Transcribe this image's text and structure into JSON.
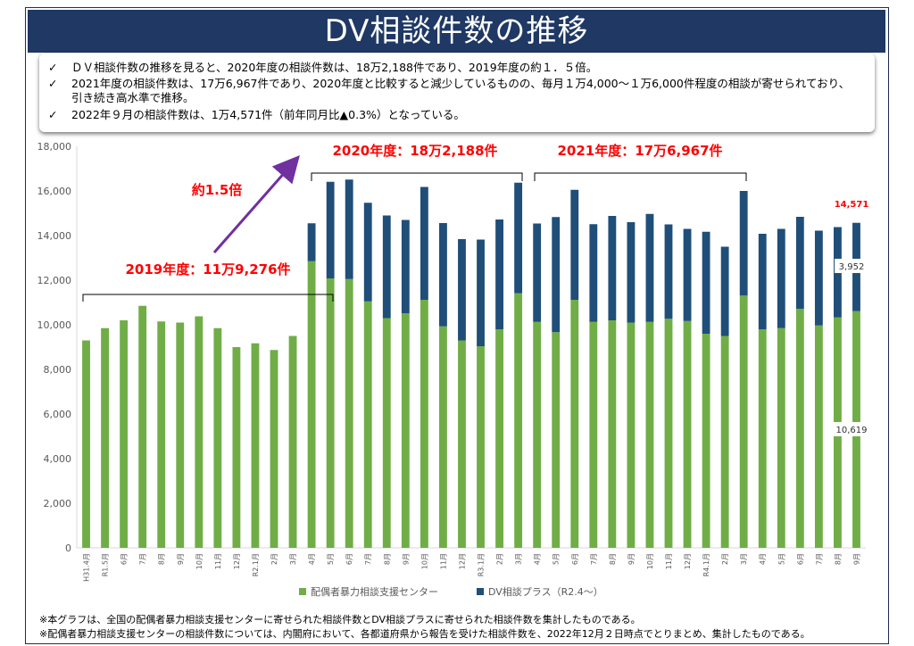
{
  "header": {
    "title": "DV相談件数の推移"
  },
  "summary": {
    "check_mark": "✓",
    "bullets": [
      "ＤＶ相談件数の推移を見ると、2020年度の相談件数は、18万2,188件であり、2019年度の約１．５倍。",
      "2021年度の相談件数は、17万6,967件であり、2020年度と比較すると減少しているものの、毎月１万4,000～１万6,000件程度の相談が寄せられており、引き続き高水準で推移。",
      "2022年９月の相談件数は、1万4,571件（前年同月比▲0.3%）となっている。"
    ]
  },
  "chart_data": {
    "type": "bar",
    "stacked": true,
    "categories": [
      "H31.4月",
      "R1.5月",
      "6月",
      "7月",
      "8月",
      "9月",
      "10月",
      "11月",
      "12月",
      "R2.1月",
      "2月",
      "3月",
      "4月",
      "5月",
      "6月",
      "7月",
      "8月",
      "9月",
      "10月",
      "11月",
      "12月",
      "R3.1月",
      "2月",
      "3月",
      "4月",
      "5月",
      "6月",
      "7月",
      "8月",
      "9月",
      "10月",
      "11月",
      "12月",
      "R4.1月",
      "2月",
      "3月",
      "4月",
      "5月",
      "6月",
      "7月",
      "8月",
      "9月"
    ],
    "series": [
      {
        "name": "配偶者暴力相談支援センター",
        "color": "#70ad47",
        "values": [
          9300,
          9850,
          10200,
          10850,
          10150,
          10100,
          10380,
          9850,
          9000,
          9170,
          8870,
          9500,
          12850,
          12080,
          12050,
          11050,
          10300,
          10520,
          11120,
          9930,
          9300,
          9040,
          9800,
          11420,
          10130,
          9670,
          11120,
          10130,
          10200,
          10100,
          10130,
          10270,
          10170,
          9600,
          9500,
          11310,
          9800,
          9850,
          10720,
          9970,
          10330,
          10619
        ]
      },
      {
        "name": "DV相談プラス（R2.4～）",
        "color": "#1f4e79",
        "values": [
          0,
          0,
          0,
          0,
          0,
          0,
          0,
          0,
          0,
          0,
          0,
          0,
          1700,
          4330,
          4460,
          4420,
          4600,
          4180,
          5060,
          4630,
          4540,
          4780,
          4920,
          4950,
          4410,
          5160,
          4930,
          4380,
          4680,
          4500,
          4840,
          4230,
          4130,
          4570,
          4000,
          4690,
          4280,
          4450,
          4120,
          4250,
          4050,
          3952
        ]
      }
    ],
    "ylim": [
      0,
      18000
    ],
    "yticks": [
      "0",
      "2,000",
      "4,000",
      "6,000",
      "8,000",
      "10,000",
      "12,000",
      "14,000",
      "16,000",
      "18,000"
    ],
    "grid": false,
    "legend_position": "bottom",
    "annotations": {
      "fy2019": "2019年度：11万9,276件",
      "fy2020": "2020年度：18万2,188件",
      "fy2021": "2021年度：17万6,967件",
      "growth": "約1.5倍",
      "last_total": "14,571",
      "last_plus": "3,952",
      "last_center": "10,619"
    }
  },
  "footnotes": [
    "※本グラフは、全国の配偶者暴力相談支援センターに寄せられた相談件数とDV相談プラスに寄せられた相談件数を集計したものである。",
    "※配偶者暴力相談支援センターの相談件数については、内閣府において、各都道府県から報告を受けた相談件数を、2022年12月２日時点でとりまとめ、集計したものである。"
  ]
}
